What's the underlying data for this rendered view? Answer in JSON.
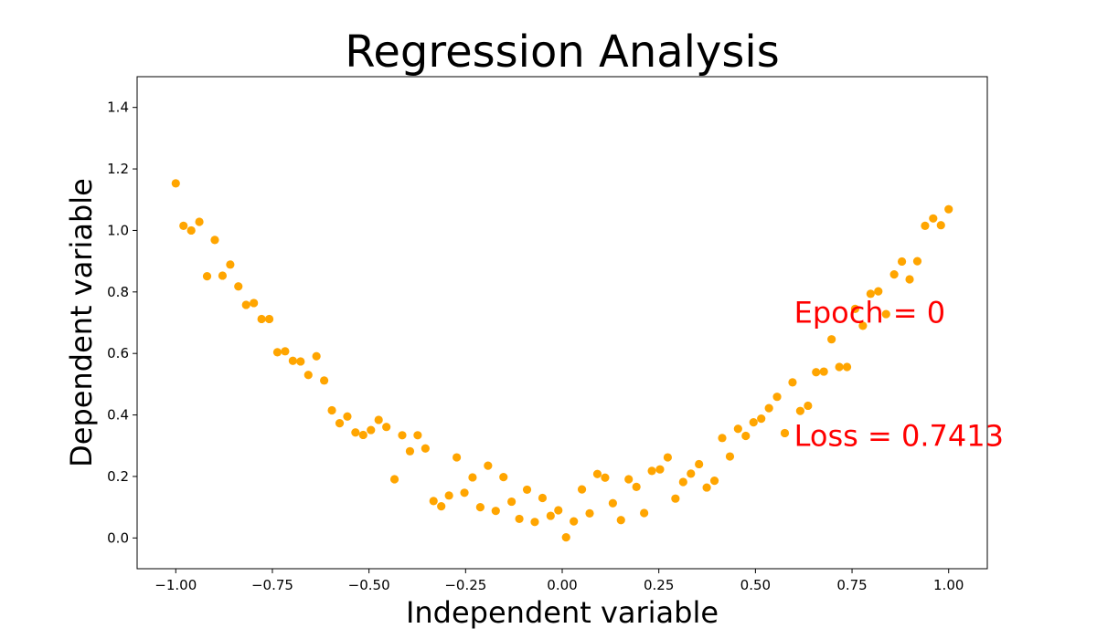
{
  "chart_data": {
    "type": "scatter",
    "title": "Regression Analysis",
    "xlabel": "Independent variable",
    "ylabel": "Dependent variable",
    "xlim": [
      -1.1,
      1.1
    ],
    "ylim": [
      -0.1,
      1.5
    ],
    "xticks": [
      -1.0,
      -0.75,
      -0.5,
      -0.25,
      0.0,
      0.25,
      0.5,
      0.75,
      1.0
    ],
    "xtick_labels": [
      "−1.00",
      "−0.75",
      "−0.50",
      "−0.25",
      "0.00",
      "0.25",
      "0.50",
      "0.75",
      "1.00"
    ],
    "yticks": [
      0.0,
      0.2,
      0.4,
      0.6,
      0.8,
      1.0,
      1.2,
      1.4
    ],
    "ytick_labels": [
      "0.0",
      "0.2",
      "0.4",
      "0.6",
      "0.8",
      "1.0",
      "1.2",
      "1.4"
    ],
    "grid": false,
    "marker_color": "#FFA500",
    "annotation_color": "#FF0000",
    "annotations": [
      {
        "text": "Epoch = 0",
        "x": 0.6,
        "y": 0.7
      },
      {
        "text": "Loss = 0.7413",
        "x": 0.6,
        "y": 0.3
      }
    ],
    "x": [
      -1.0,
      -0.98,
      -0.96,
      -0.939,
      -0.919,
      -0.899,
      -0.879,
      -0.859,
      -0.838,
      -0.818,
      -0.798,
      -0.778,
      -0.758,
      -0.737,
      -0.717,
      -0.697,
      -0.677,
      -0.657,
      -0.636,
      -0.616,
      -0.596,
      -0.576,
      -0.556,
      -0.535,
      -0.515,
      -0.495,
      -0.475,
      -0.455,
      -0.434,
      -0.414,
      -0.394,
      -0.374,
      -0.354,
      -0.333,
      -0.313,
      -0.293,
      -0.273,
      -0.253,
      -0.232,
      -0.212,
      -0.192,
      -0.172,
      -0.152,
      -0.131,
      -0.111,
      -0.091,
      -0.071,
      -0.051,
      -0.03,
      -0.01,
      0.01,
      0.03,
      0.051,
      0.071,
      0.091,
      0.111,
      0.131,
      0.152,
      0.172,
      0.192,
      0.212,
      0.232,
      0.253,
      0.273,
      0.293,
      0.313,
      0.333,
      0.354,
      0.374,
      0.394,
      0.414,
      0.434,
      0.455,
      0.475,
      0.495,
      0.515,
      0.535,
      0.556,
      0.576,
      0.596,
      0.616,
      0.636,
      0.657,
      0.677,
      0.697,
      0.717,
      0.737,
      0.758,
      0.778,
      0.798,
      0.818,
      0.838,
      0.859,
      0.879,
      0.899,
      0.919,
      0.939,
      0.96,
      0.98,
      1.0
    ],
    "y": [
      1.153,
      1.015,
      1.0,
      1.028,
      0.851,
      0.969,
      0.853,
      0.889,
      0.818,
      0.758,
      0.764,
      0.712,
      0.712,
      0.604,
      0.607,
      0.576,
      0.574,
      0.53,
      0.591,
      0.512,
      0.415,
      0.373,
      0.395,
      0.343,
      0.335,
      0.351,
      0.384,
      0.361,
      0.191,
      0.334,
      0.282,
      0.334,
      0.291,
      0.12,
      0.103,
      0.138,
      0.262,
      0.147,
      0.197,
      0.1,
      0.235,
      0.088,
      0.198,
      0.118,
      0.062,
      0.157,
      0.052,
      0.13,
      0.072,
      0.09,
      0.002,
      0.054,
      0.158,
      0.08,
      0.208,
      0.196,
      0.113,
      0.058,
      0.191,
      0.166,
      0.081,
      0.218,
      0.223,
      0.262,
      0.128,
      0.182,
      0.209,
      0.24,
      0.164,
      0.186,
      0.325,
      0.265,
      0.355,
      0.332,
      0.376,
      0.388,
      0.422,
      0.459,
      0.341,
      0.506,
      0.413,
      0.43,
      0.539,
      0.541,
      0.646,
      0.556,
      0.556,
      0.745,
      0.69,
      0.794,
      0.802,
      0.728,
      0.857,
      0.899,
      0.841,
      0.9,
      1.015,
      1.039,
      1.017,
      1.069
    ]
  }
}
